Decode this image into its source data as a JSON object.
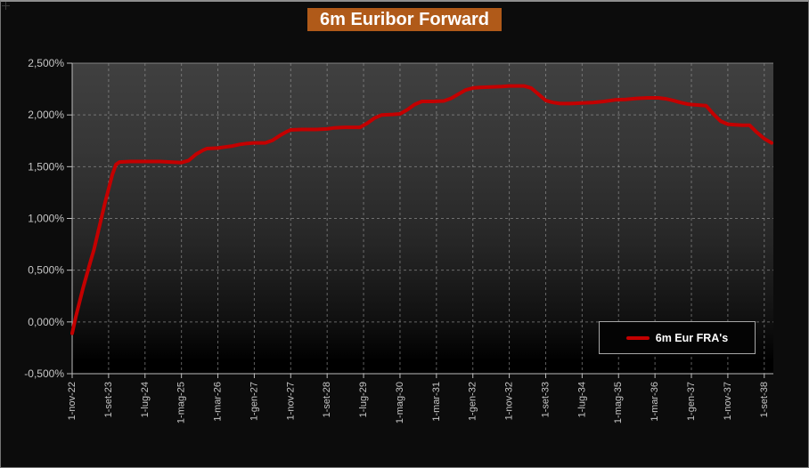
{
  "title": "6m Euribor Forward",
  "colors": {
    "page_bg": "#0c0c0c",
    "title_bg": "#b05a19",
    "title_text": "#ffffff",
    "line": "#c40000",
    "gridline": "#9a9a9a",
    "axis": "#bdbdbd",
    "tick_label": "#c6c6c6",
    "plot_gradient_top": "#404040",
    "plot_gradient_bottom": "#000000",
    "legend_border": "#a6a6a6",
    "legend_bg": "#040404"
  },
  "legend": {
    "series_label": "6m Eur FRA's"
  },
  "chart_data": {
    "type": "line",
    "title": "6m Euribor Forward",
    "x_tick_labels": [
      "1-nov-22",
      "1-set-23",
      "1-lug-24",
      "1-mag-25",
      "1-mar-26",
      "1-gen-27",
      "1-nov-27",
      "1-set-28",
      "1-lug-29",
      "1-mag-30",
      "1-mar-31",
      "1-gen-32",
      "1-nov-32",
      "1-set-33",
      "1-lug-34",
      "1-mag-35",
      "1-mar-36",
      "1-gen-37",
      "1-nov-37",
      "1-set-38"
    ],
    "x_tick_interval_months": 10,
    "x_total_months": 192.5,
    "y_tick_labels": [
      "2,500%",
      "2,000%",
      "1,500%",
      "1,000%",
      "0,500%",
      "0,000%",
      "-0,500%"
    ],
    "ylim": [
      -0.5,
      2.5
    ],
    "y_unit": "%",
    "grid": "dashed",
    "legend_position": "bottom-right",
    "series": [
      {
        "name": "6m Eur FRA's",
        "color": "#c40000",
        "points_format": "[months_since_1-nov-22, rate_percent]",
        "points": [
          [
            0,
            -0.11
          ],
          [
            1,
            0.05
          ],
          [
            3,
            0.33
          ],
          [
            5,
            0.58
          ],
          [
            6,
            0.7
          ],
          [
            7,
            0.85
          ],
          [
            9,
            1.15
          ],
          [
            11,
            1.42
          ],
          [
            12,
            1.52
          ],
          [
            13,
            1.545
          ],
          [
            16,
            1.55
          ],
          [
            20,
            1.55
          ],
          [
            24,
            1.55
          ],
          [
            27,
            1.545
          ],
          [
            30,
            1.54
          ],
          [
            32,
            1.56
          ],
          [
            34,
            1.62
          ],
          [
            36,
            1.66
          ],
          [
            37,
            1.675
          ],
          [
            40,
            1.68
          ],
          [
            42,
            1.69
          ],
          [
            44,
            1.7
          ],
          [
            46,
            1.715
          ],
          [
            48,
            1.725
          ],
          [
            50,
            1.73
          ],
          [
            53,
            1.73
          ],
          [
            55,
            1.755
          ],
          [
            57,
            1.8
          ],
          [
            59,
            1.84
          ],
          [
            60,
            1.855
          ],
          [
            63,
            1.86
          ],
          [
            67,
            1.86
          ],
          [
            70,
            1.865
          ],
          [
            72,
            1.875
          ],
          [
            75,
            1.88
          ],
          [
            79,
            1.88
          ],
          [
            81,
            1.92
          ],
          [
            83,
            1.97
          ],
          [
            85,
            2.0
          ],
          [
            88,
            2.005
          ],
          [
            90,
            2.01
          ],
          [
            92,
            2.05
          ],
          [
            94,
            2.1
          ],
          [
            96,
            2.13
          ],
          [
            99,
            2.13
          ],
          [
            102,
            2.135
          ],
          [
            104,
            2.16
          ],
          [
            106,
            2.2
          ],
          [
            108,
            2.24
          ],
          [
            110,
            2.26
          ],
          [
            112,
            2.265
          ],
          [
            115,
            2.27
          ],
          [
            118,
            2.275
          ],
          [
            120,
            2.28
          ],
          [
            124,
            2.28
          ],
          [
            126,
            2.26
          ],
          [
            128,
            2.2
          ],
          [
            130,
            2.14
          ],
          [
            132,
            2.12
          ],
          [
            134,
            2.11
          ],
          [
            137,
            2.11
          ],
          [
            140,
            2.115
          ],
          [
            143,
            2.12
          ],
          [
            146,
            2.13
          ],
          [
            149,
            2.145
          ],
          [
            152,
            2.15
          ],
          [
            155,
            2.16
          ],
          [
            158,
            2.165
          ],
          [
            161,
            2.165
          ],
          [
            163,
            2.155
          ],
          [
            165,
            2.14
          ],
          [
            167,
            2.12
          ],
          [
            169,
            2.105
          ],
          [
            170,
            2.1
          ],
          [
            172,
            2.095
          ],
          [
            174,
            2.09
          ],
          [
            176,
            2.01
          ],
          [
            178,
            1.94
          ],
          [
            180,
            1.91
          ],
          [
            182,
            1.905
          ],
          [
            184,
            1.9
          ],
          [
            186,
            1.9
          ],
          [
            188,
            1.83
          ],
          [
            190,
            1.77
          ],
          [
            192,
            1.73
          ]
        ]
      }
    ]
  }
}
